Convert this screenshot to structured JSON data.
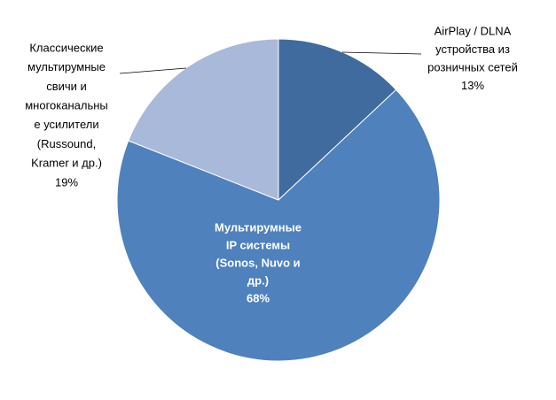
{
  "chart_data": {
    "type": "pie",
    "categories": [
      [
        "AirPlay / DLNA",
        "устройства из",
        "розничных сетей"
      ],
      [
        "Мультирумные",
        "IP системы",
        "(Sonos, Nuvo и",
        "др.)"
      ],
      [
        "Классические",
        "мультирумные",
        "свичи и",
        "многоканальны",
        "е усилители",
        "(Russound,",
        "Kramer и др.)"
      ]
    ],
    "values": [
      13,
      68,
      19
    ],
    "value_labels": [
      "13%",
      "68%",
      "19%"
    ],
    "colors": [
      "#3f6b9f",
      "#4f81bd",
      "#a9b9d9"
    ]
  }
}
